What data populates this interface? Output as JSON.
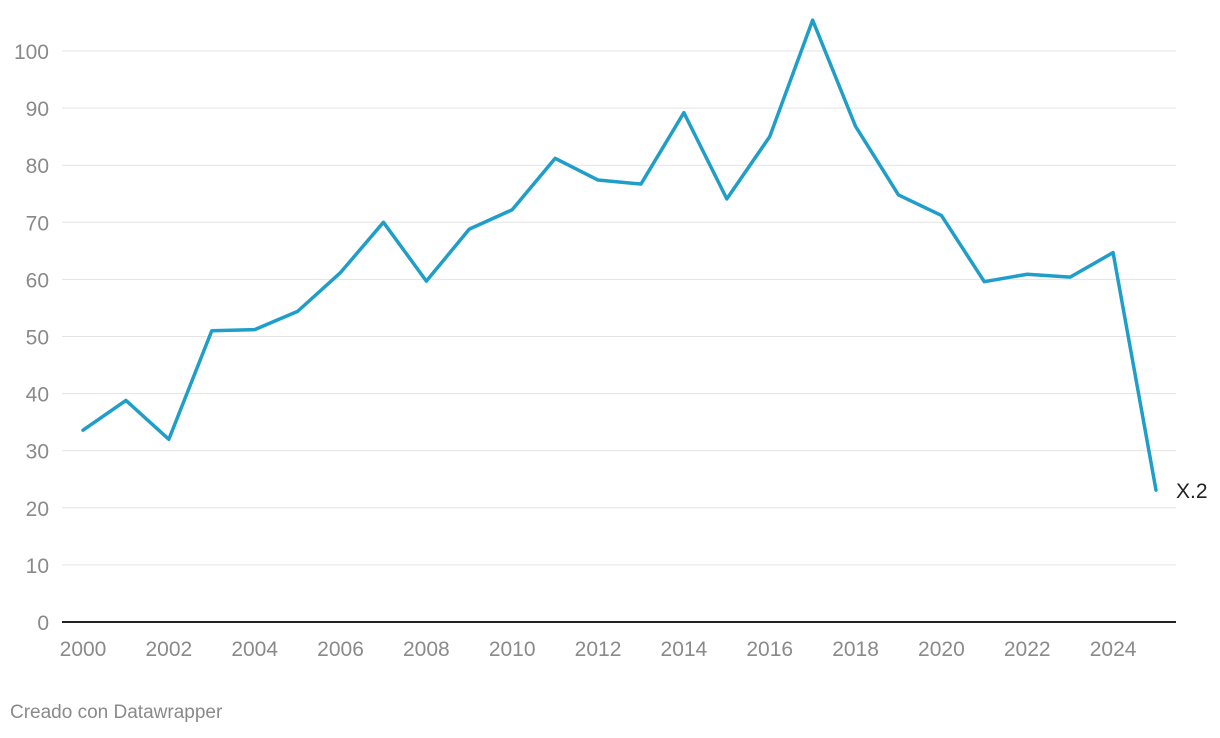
{
  "chart_data": {
    "type": "line",
    "x": [
      2000,
      2001,
      2002,
      2003,
      2004,
      2005,
      2006,
      2007,
      2008,
      2009,
      2010,
      2011,
      2012,
      2013,
      2014,
      2015,
      2016,
      2017,
      2018,
      2019,
      2020,
      2021,
      2022,
      2023,
      2024,
      2025
    ],
    "series": [
      {
        "name": "X.2",
        "color": "#1f9ec9",
        "values": [
          33.6,
          38.8,
          32.0,
          51.0,
          51.2,
          54.4,
          61.2,
          70.0,
          59.7,
          68.8,
          72.2,
          81.2,
          77.4,
          76.7,
          89.2,
          74.1,
          85.0,
          105.4,
          86.8,
          74.8,
          71.2,
          59.6,
          60.9,
          60.4,
          64.7,
          23.1
        ]
      }
    ],
    "xlim": [
      2000,
      2025
    ],
    "ylim": [
      0,
      105
    ],
    "x_ticks": [
      "2000",
      "2002",
      "2004",
      "2006",
      "2008",
      "2010",
      "2012",
      "2014",
      "2016",
      "2018",
      "2020",
      "2022",
      "2024"
    ],
    "y_ticks": [
      "0",
      "10",
      "20",
      "30",
      "40",
      "50",
      "60",
      "70",
      "80",
      "90",
      "100"
    ],
    "grid": true,
    "title": "",
    "xlabel": "",
    "ylabel": ""
  },
  "footer": {
    "credit": "Creado con Datawrapper"
  }
}
